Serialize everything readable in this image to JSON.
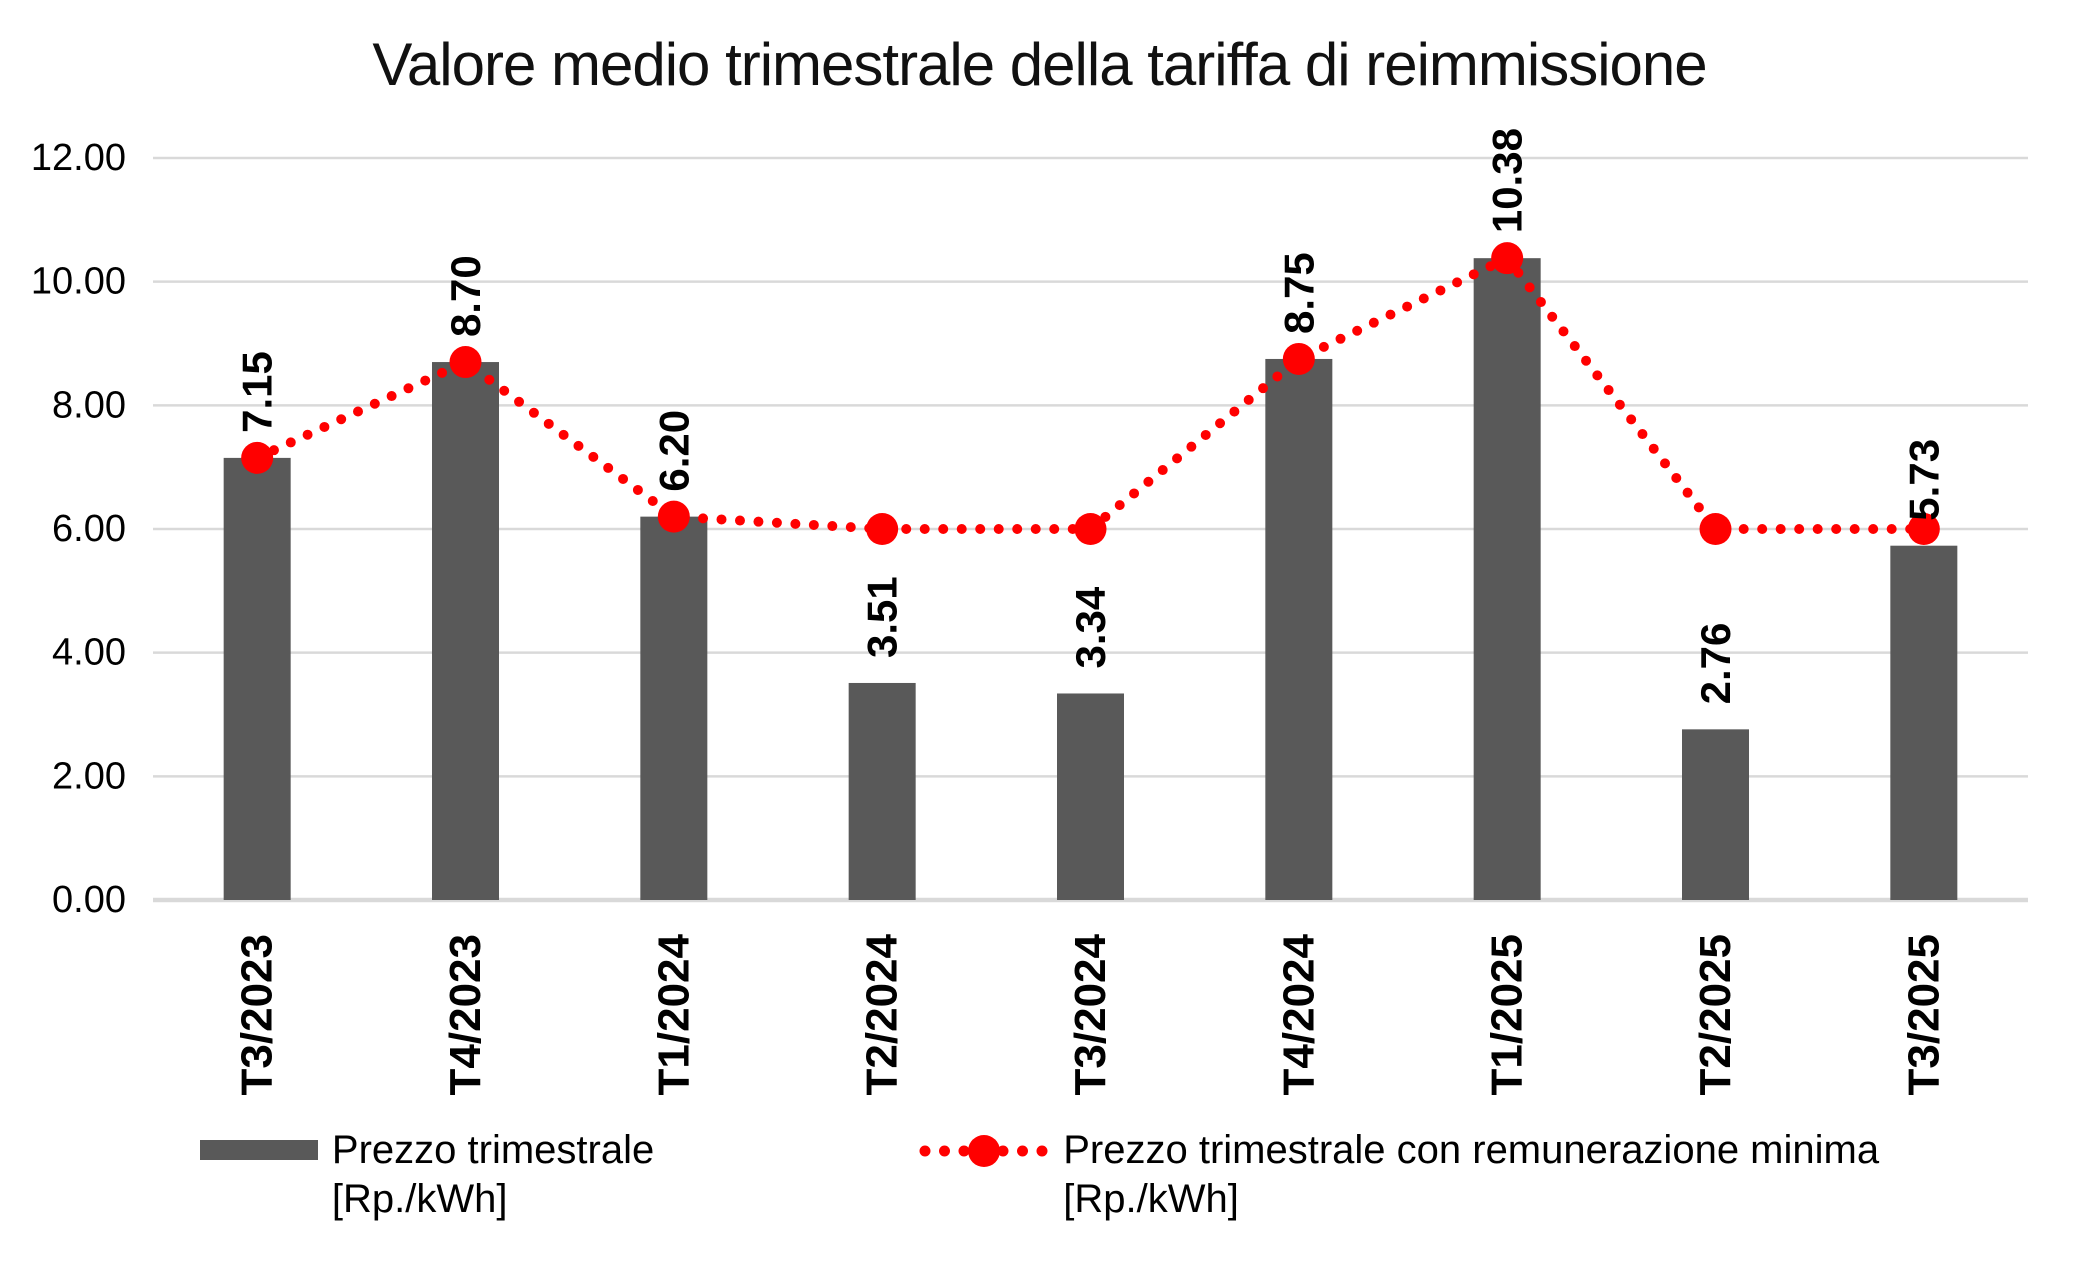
{
  "title": "Valore medio trimestrale della tariffa di reimmissione",
  "colors": {
    "bar": "#595959",
    "line": "#FF0000",
    "gridline": "#D9D9D9",
    "text": "#000000"
  },
  "legend": {
    "items": [
      {
        "label": "Prezzo trimestrale",
        "unit": "[Rp./kWh]"
      },
      {
        "label": "Prezzo trimestrale con remunerazione minima",
        "unit": "[Rp./kWh]"
      }
    ]
  },
  "chart_data": {
    "type": "bar",
    "title": "Valore medio trimestrale della tariffa di reimmissione",
    "categories": [
      "T3/2023",
      "T4/2023",
      "T1/2024",
      "T2/2024",
      "T3/2024",
      "T4/2024",
      "T1/2025",
      "T2/2025",
      "T3/2025"
    ],
    "series": [
      {
        "name": "Prezzo trimestrale [Rp./kWh]",
        "type": "bar",
        "values": [
          7.15,
          8.7,
          6.2,
          3.51,
          3.34,
          8.75,
          10.38,
          2.76,
          5.73
        ]
      },
      {
        "name": "Prezzo trimestrale con remunerazione minima [Rp./kWh]",
        "type": "line-dotted",
        "values": [
          7.15,
          8.7,
          6.2,
          6.0,
          6.0,
          8.75,
          10.38,
          6.0,
          6.0
        ]
      }
    ],
    "data_labels": [
      "7.15",
      "8.70",
      "6.20",
      "3.51",
      "3.34",
      "8.75",
      "10.38",
      "2.76",
      "5.73"
    ],
    "xlabel": "",
    "ylabel": "",
    "ylim": [
      0,
      12
    ],
    "ytick_step": 2,
    "yticks": [
      "0.00",
      "2.00",
      "4.00",
      "6.00",
      "8.00",
      "10.00",
      "12.00"
    ],
    "grid": true,
    "legend_position": "bottom"
  }
}
